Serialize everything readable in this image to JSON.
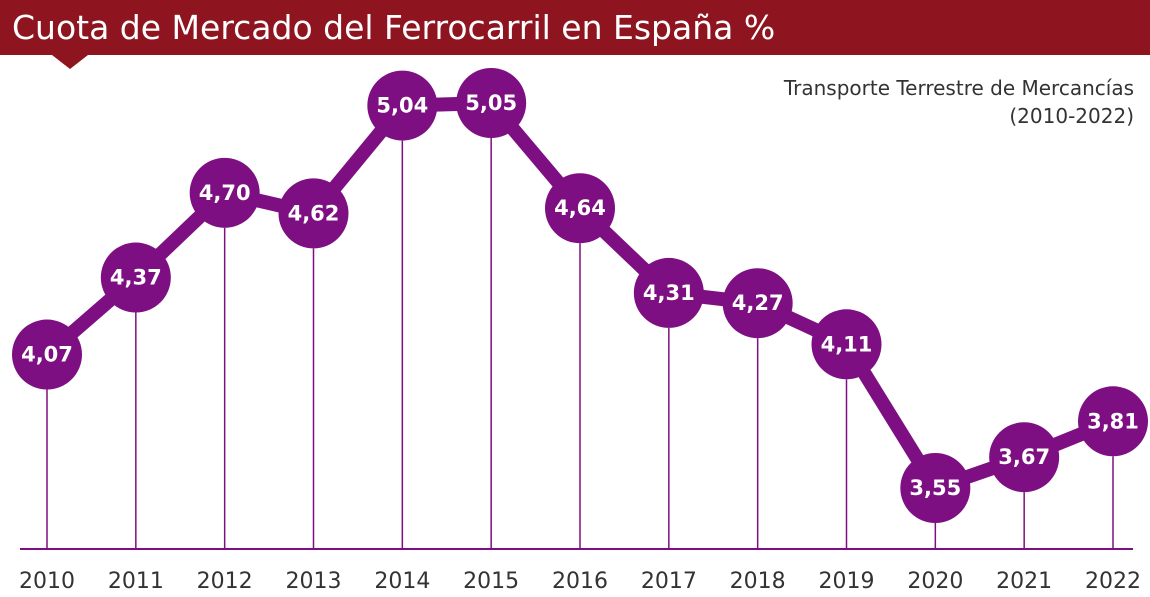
{
  "header": {
    "title": "Cuota de Mercado del Ferrocarril en España %",
    "subtitle_line1": "Transporte Terrestre de Mercancías",
    "subtitle_line2": "(2010-2022)"
  },
  "colors": {
    "title_bar": "#8e1520",
    "series": "#7e0f82",
    "axis": "#7e0f82",
    "label_text": "#ffffff"
  },
  "chart_data": {
    "type": "line",
    "title": "Cuota de Mercado del Ferrocarril en España %",
    "subtitle": "Transporte Terrestre de Mercancías (2010-2022)",
    "xlabel": "",
    "ylabel": "",
    "grid": false,
    "categories": [
      "2010",
      "2011",
      "2012",
      "2013",
      "2014",
      "2015",
      "2016",
      "2017",
      "2018",
      "2019",
      "2020",
      "2021",
      "2022"
    ],
    "values": [
      4.07,
      4.37,
      4.7,
      4.62,
      5.04,
      5.05,
      4.64,
      4.31,
      4.27,
      4.11,
      3.55,
      3.67,
      3.81
    ],
    "value_labels": [
      "4,07",
      "4,37",
      "4,70",
      "4,62",
      "5,04",
      "5,05",
      "4,64",
      "4,31",
      "4,27",
      "4,11",
      "3,55",
      "3,67",
      "3,81"
    ]
  }
}
